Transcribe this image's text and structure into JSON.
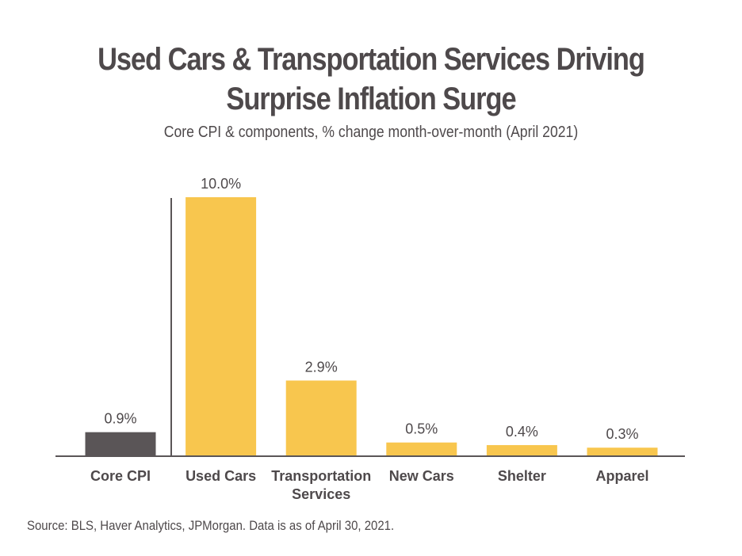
{
  "title": "Used Cars & Transportation Services Driving Surprise Inflation Surge",
  "subtitle": "Core CPI & components, % change month-over-month (April 2021)",
  "source": "Source: BLS, Haver Analytics, JPMorgan. Data is as of April 30, 2021.",
  "colors": {
    "core": "#5a5557",
    "component": "#f8c64e",
    "axis": "#5a5557",
    "text": "#4e494b"
  },
  "chart_data": {
    "type": "bar",
    "title": "Used Cars & Transportation Services Driving Surprise Inflation Surge",
    "subtitle": "Core CPI & components, % change month-over-month (April 2021)",
    "categories": [
      "Core CPI",
      "Used Cars",
      "Transportation Services",
      "New Cars",
      "Shelter",
      "Apparel"
    ],
    "category_lines": [
      [
        "Core CPI"
      ],
      [
        "Used Cars"
      ],
      [
        "Transportation",
        "Services"
      ],
      [
        "New Cars"
      ],
      [
        "Shelter"
      ],
      [
        "Apparel"
      ]
    ],
    "values": [
      0.9,
      10.0,
      2.9,
      0.5,
      0.4,
      0.3
    ],
    "data_labels": [
      "0.9%",
      "10.0%",
      "2.9%",
      "0.5%",
      "0.4%",
      "0.3%"
    ],
    "unit": "%",
    "xlabel": "",
    "ylabel": "",
    "ylim": [
      0,
      10.0
    ],
    "grid": false,
    "legend": "none"
  }
}
